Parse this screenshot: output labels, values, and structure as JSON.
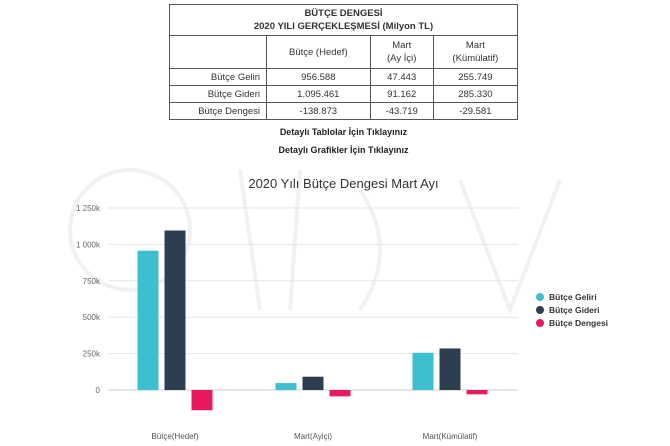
{
  "table": {
    "title_line1": "BÜTÇE DENGESİ",
    "title_line2": "2020 YILI GERÇEKLEŞMESİ (Milyon TL)",
    "headers": [
      "Bütçe (Hedef)",
      "Mart\n(Ay İçi)",
      "Mart\n(Kümülatif)"
    ],
    "rows": [
      {
        "label": "Bütçe Geliri",
        "values": [
          "956.588",
          "47.443",
          "255.749"
        ]
      },
      {
        "label": "Bütçe Gideri",
        "values": [
          "1.095.461",
          "91.162",
          "285.330"
        ]
      },
      {
        "label": "Bütçe Dengesi",
        "values": [
          "-138.873",
          "-43.719",
          "-29.581"
        ]
      }
    ]
  },
  "links": {
    "tables": "Detaylı Tablolar İçin Tıklayınız",
    "charts": "Detaylı Grafikler İçin Tıklayınız"
  },
  "chart_data": {
    "type": "bar",
    "title": "2020 Yılı Bütçe Dengesi Mart Ayı",
    "categories": [
      "Bütçe(Hedef)",
      "Mart(Ayiçi)",
      "Mart(Kümülatif)"
    ],
    "series": [
      {
        "name": "Bütçe Geliri",
        "values": [
          956588,
          47443,
          255749
        ],
        "color": "#3ebfcf"
      },
      {
        "name": "Bütçe Gideri",
        "values": [
          1095461,
          91162,
          285330
        ],
        "color": "#2c3e50"
      },
      {
        "name": "Bütçe Dengesi",
        "values": [
          -138873,
          -43719,
          -29581
        ],
        "color": "#e8195f"
      }
    ],
    "ylim": [
      -250000,
      1250000
    ],
    "yticks": [
      0,
      250000,
      500000,
      750000,
      1000000,
      1250000
    ],
    "ytick_labels": [
      "0",
      "250k",
      "500k",
      "750k",
      "1 000k",
      "1 250k"
    ],
    "grid": true,
    "legend_position": "right"
  }
}
